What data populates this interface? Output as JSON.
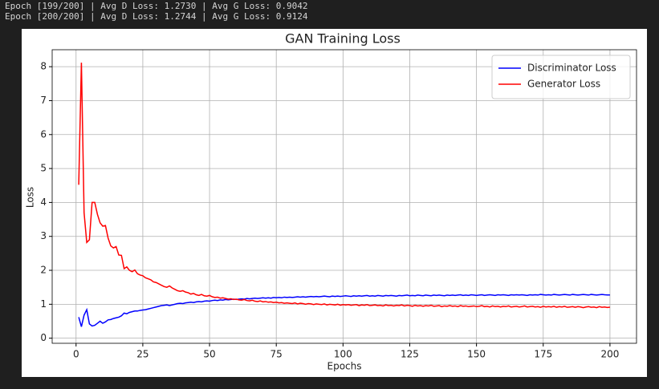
{
  "log_lines": [
    "Epoch [199/200] | Avg D Loss: 1.2730 | Avg G Loss: 0.9042",
    "Epoch [200/200] | Avg D Loss: 1.2744 | Avg G Loss: 0.9124"
  ],
  "chart_data": {
    "type": "line",
    "title": "GAN Training Loss",
    "x_label": "Epochs",
    "y_label": "Loss",
    "grid": true,
    "legend": "upper right",
    "xlim": [
      -8.95,
      209.95
    ],
    "xticks": [
      0,
      25,
      50,
      75,
      100,
      125,
      150,
      175,
      200
    ],
    "ylim": [
      -0.15,
      8.5
    ],
    "yticks": [
      0,
      1,
      2,
      3,
      4,
      5,
      6,
      7,
      8
    ],
    "x": [
      1,
      2,
      3,
      4,
      5,
      6,
      7,
      8,
      9,
      10,
      11,
      12,
      13,
      14,
      15,
      16,
      17,
      18,
      19,
      20,
      21,
      22,
      23,
      24,
      25,
      26,
      27,
      28,
      29,
      30,
      31,
      32,
      33,
      34,
      35,
      36,
      37,
      38,
      39,
      40,
      41,
      42,
      43,
      44,
      45,
      46,
      47,
      48,
      49,
      50,
      51,
      52,
      53,
      54,
      55,
      56,
      57,
      58,
      59,
      60,
      61,
      62,
      63,
      64,
      65,
      66,
      67,
      68,
      69,
      70,
      71,
      72,
      73,
      74,
      75,
      76,
      77,
      78,
      79,
      80,
      81,
      82,
      83,
      84,
      85,
      86,
      87,
      88,
      89,
      90,
      91,
      92,
      93,
      94,
      95,
      96,
      97,
      98,
      99,
      100,
      101,
      102,
      103,
      104,
      105,
      106,
      107,
      108,
      109,
      110,
      111,
      112,
      113,
      114,
      115,
      116,
      117,
      118,
      119,
      120,
      121,
      122,
      123,
      124,
      125,
      126,
      127,
      128,
      129,
      130,
      131,
      132,
      133,
      134,
      135,
      136,
      137,
      138,
      139,
      140,
      141,
      142,
      143,
      144,
      145,
      146,
      147,
      148,
      149,
      150,
      151,
      152,
      153,
      154,
      155,
      156,
      157,
      158,
      159,
      160,
      161,
      162,
      163,
      164,
      165,
      166,
      167,
      168,
      169,
      170,
      171,
      172,
      173,
      174,
      175,
      176,
      177,
      178,
      179,
      180,
      181,
      182,
      183,
      184,
      185,
      186,
      187,
      188,
      189,
      190,
      191,
      192,
      193,
      194,
      195,
      196,
      197,
      198,
      199,
      200
    ],
    "series": [
      {
        "name": "Discriminator Loss",
        "color": "#0000ff",
        "values": [
          0.62,
          0.34,
          0.68,
          0.84,
          0.42,
          0.36,
          0.38,
          0.44,
          0.5,
          0.44,
          0.48,
          0.54,
          0.55,
          0.58,
          0.6,
          0.62,
          0.66,
          0.74,
          0.72,
          0.76,
          0.78,
          0.8,
          0.8,
          0.82,
          0.83,
          0.84,
          0.86,
          0.88,
          0.9,
          0.92,
          0.94,
          0.96,
          0.97,
          0.98,
          0.96,
          0.98,
          1.0,
          1.02,
          1.03,
          1.02,
          1.04,
          1.05,
          1.06,
          1.05,
          1.07,
          1.08,
          1.07,
          1.09,
          1.1,
          1.09,
          1.11,
          1.12,
          1.11,
          1.13,
          1.12,
          1.14,
          1.13,
          1.14,
          1.15,
          1.14,
          1.15,
          1.16,
          1.15,
          1.17,
          1.16,
          1.17,
          1.18,
          1.17,
          1.18,
          1.19,
          1.18,
          1.19,
          1.18,
          1.2,
          1.19,
          1.2,
          1.19,
          1.21,
          1.2,
          1.21,
          1.2,
          1.21,
          1.22,
          1.21,
          1.22,
          1.21,
          1.22,
          1.23,
          1.22,
          1.23,
          1.22,
          1.23,
          1.24,
          1.23,
          1.22,
          1.24,
          1.23,
          1.24,
          1.23,
          1.24,
          1.25,
          1.24,
          1.23,
          1.25,
          1.24,
          1.25,
          1.24,
          1.25,
          1.26,
          1.24,
          1.25,
          1.24,
          1.26,
          1.25,
          1.24,
          1.26,
          1.25,
          1.26,
          1.25,
          1.24,
          1.26,
          1.25,
          1.26,
          1.27,
          1.25,
          1.26,
          1.25,
          1.27,
          1.26,
          1.25,
          1.27,
          1.26,
          1.25,
          1.27,
          1.26,
          1.27,
          1.26,
          1.25,
          1.27,
          1.26,
          1.27,
          1.26,
          1.27,
          1.28,
          1.26,
          1.27,
          1.26,
          1.28,
          1.27,
          1.26,
          1.27,
          1.28,
          1.26,
          1.27,
          1.28,
          1.27,
          1.26,
          1.28,
          1.27,
          1.28,
          1.27,
          1.26,
          1.28,
          1.27,
          1.28,
          1.27,
          1.28,
          1.27,
          1.26,
          1.28,
          1.27,
          1.28,
          1.27,
          1.29,
          1.28,
          1.27,
          1.28,
          1.27,
          1.29,
          1.28,
          1.27,
          1.28,
          1.29,
          1.28,
          1.27,
          1.29,
          1.28,
          1.27,
          1.28,
          1.29,
          1.28,
          1.27,
          1.29,
          1.28,
          1.27,
          1.28,
          1.29,
          1.28,
          1.273,
          1.2744
        ]
      },
      {
        "name": "Generator Loss",
        "color": "#ff0000",
        "values": [
          4.52,
          8.12,
          3.7,
          2.82,
          2.9,
          4.0,
          4.0,
          3.65,
          3.4,
          3.3,
          3.32,
          2.95,
          2.72,
          2.66,
          2.7,
          2.45,
          2.44,
          2.05,
          2.1,
          2.0,
          1.96,
          2.01,
          1.9,
          1.86,
          1.84,
          1.78,
          1.75,
          1.72,
          1.66,
          1.64,
          1.6,
          1.56,
          1.52,
          1.5,
          1.54,
          1.48,
          1.44,
          1.4,
          1.38,
          1.4,
          1.36,
          1.34,
          1.3,
          1.32,
          1.28,
          1.26,
          1.29,
          1.25,
          1.24,
          1.26,
          1.22,
          1.2,
          1.21,
          1.18,
          1.19,
          1.17,
          1.15,
          1.16,
          1.14,
          1.15,
          1.13,
          1.12,
          1.14,
          1.11,
          1.1,
          1.12,
          1.09,
          1.08,
          1.1,
          1.07,
          1.08,
          1.06,
          1.07,
          1.05,
          1.06,
          1.04,
          1.05,
          1.03,
          1.04,
          1.03,
          1.02,
          1.04,
          1.01,
          1.03,
          1.02,
          1.0,
          1.02,
          1.01,
          0.99,
          1.01,
          1.0,
          0.99,
          1.01,
          0.98,
          1.0,
          0.99,
          0.98,
          1.0,
          0.97,
          0.99,
          0.98,
          0.99,
          0.97,
          0.98,
          0.99,
          0.96,
          0.98,
          0.97,
          0.99,
          0.96,
          0.97,
          0.98,
          0.96,
          0.97,
          0.95,
          0.98,
          0.96,
          0.97,
          0.95,
          0.97,
          0.96,
          0.98,
          0.95,
          0.97,
          0.96,
          0.94,
          0.97,
          0.95,
          0.96,
          0.94,
          0.96,
          0.95,
          0.97,
          0.94,
          0.95,
          0.96,
          0.93,
          0.95,
          0.94,
          0.96,
          0.94,
          0.95,
          0.93,
          0.96,
          0.94,
          0.95,
          0.93,
          0.94,
          0.95,
          0.93,
          0.94,
          0.96,
          0.93,
          0.94,
          0.92,
          0.95,
          0.93,
          0.94,
          0.92,
          0.94,
          0.93,
          0.95,
          0.92,
          0.93,
          0.94,
          0.92,
          0.93,
          0.95,
          0.92,
          0.93,
          0.94,
          0.92,
          0.93,
          0.91,
          0.94,
          0.92,
          0.93,
          0.92,
          0.94,
          0.91,
          0.93,
          0.92,
          0.94,
          0.91,
          0.92,
          0.93,
          0.91,
          0.93,
          0.92,
          0.9,
          0.92,
          0.93,
          0.91,
          0.92,
          0.9,
          0.93,
          0.91,
          0.92,
          0.9042,
          0.9124
        ]
      }
    ]
  }
}
